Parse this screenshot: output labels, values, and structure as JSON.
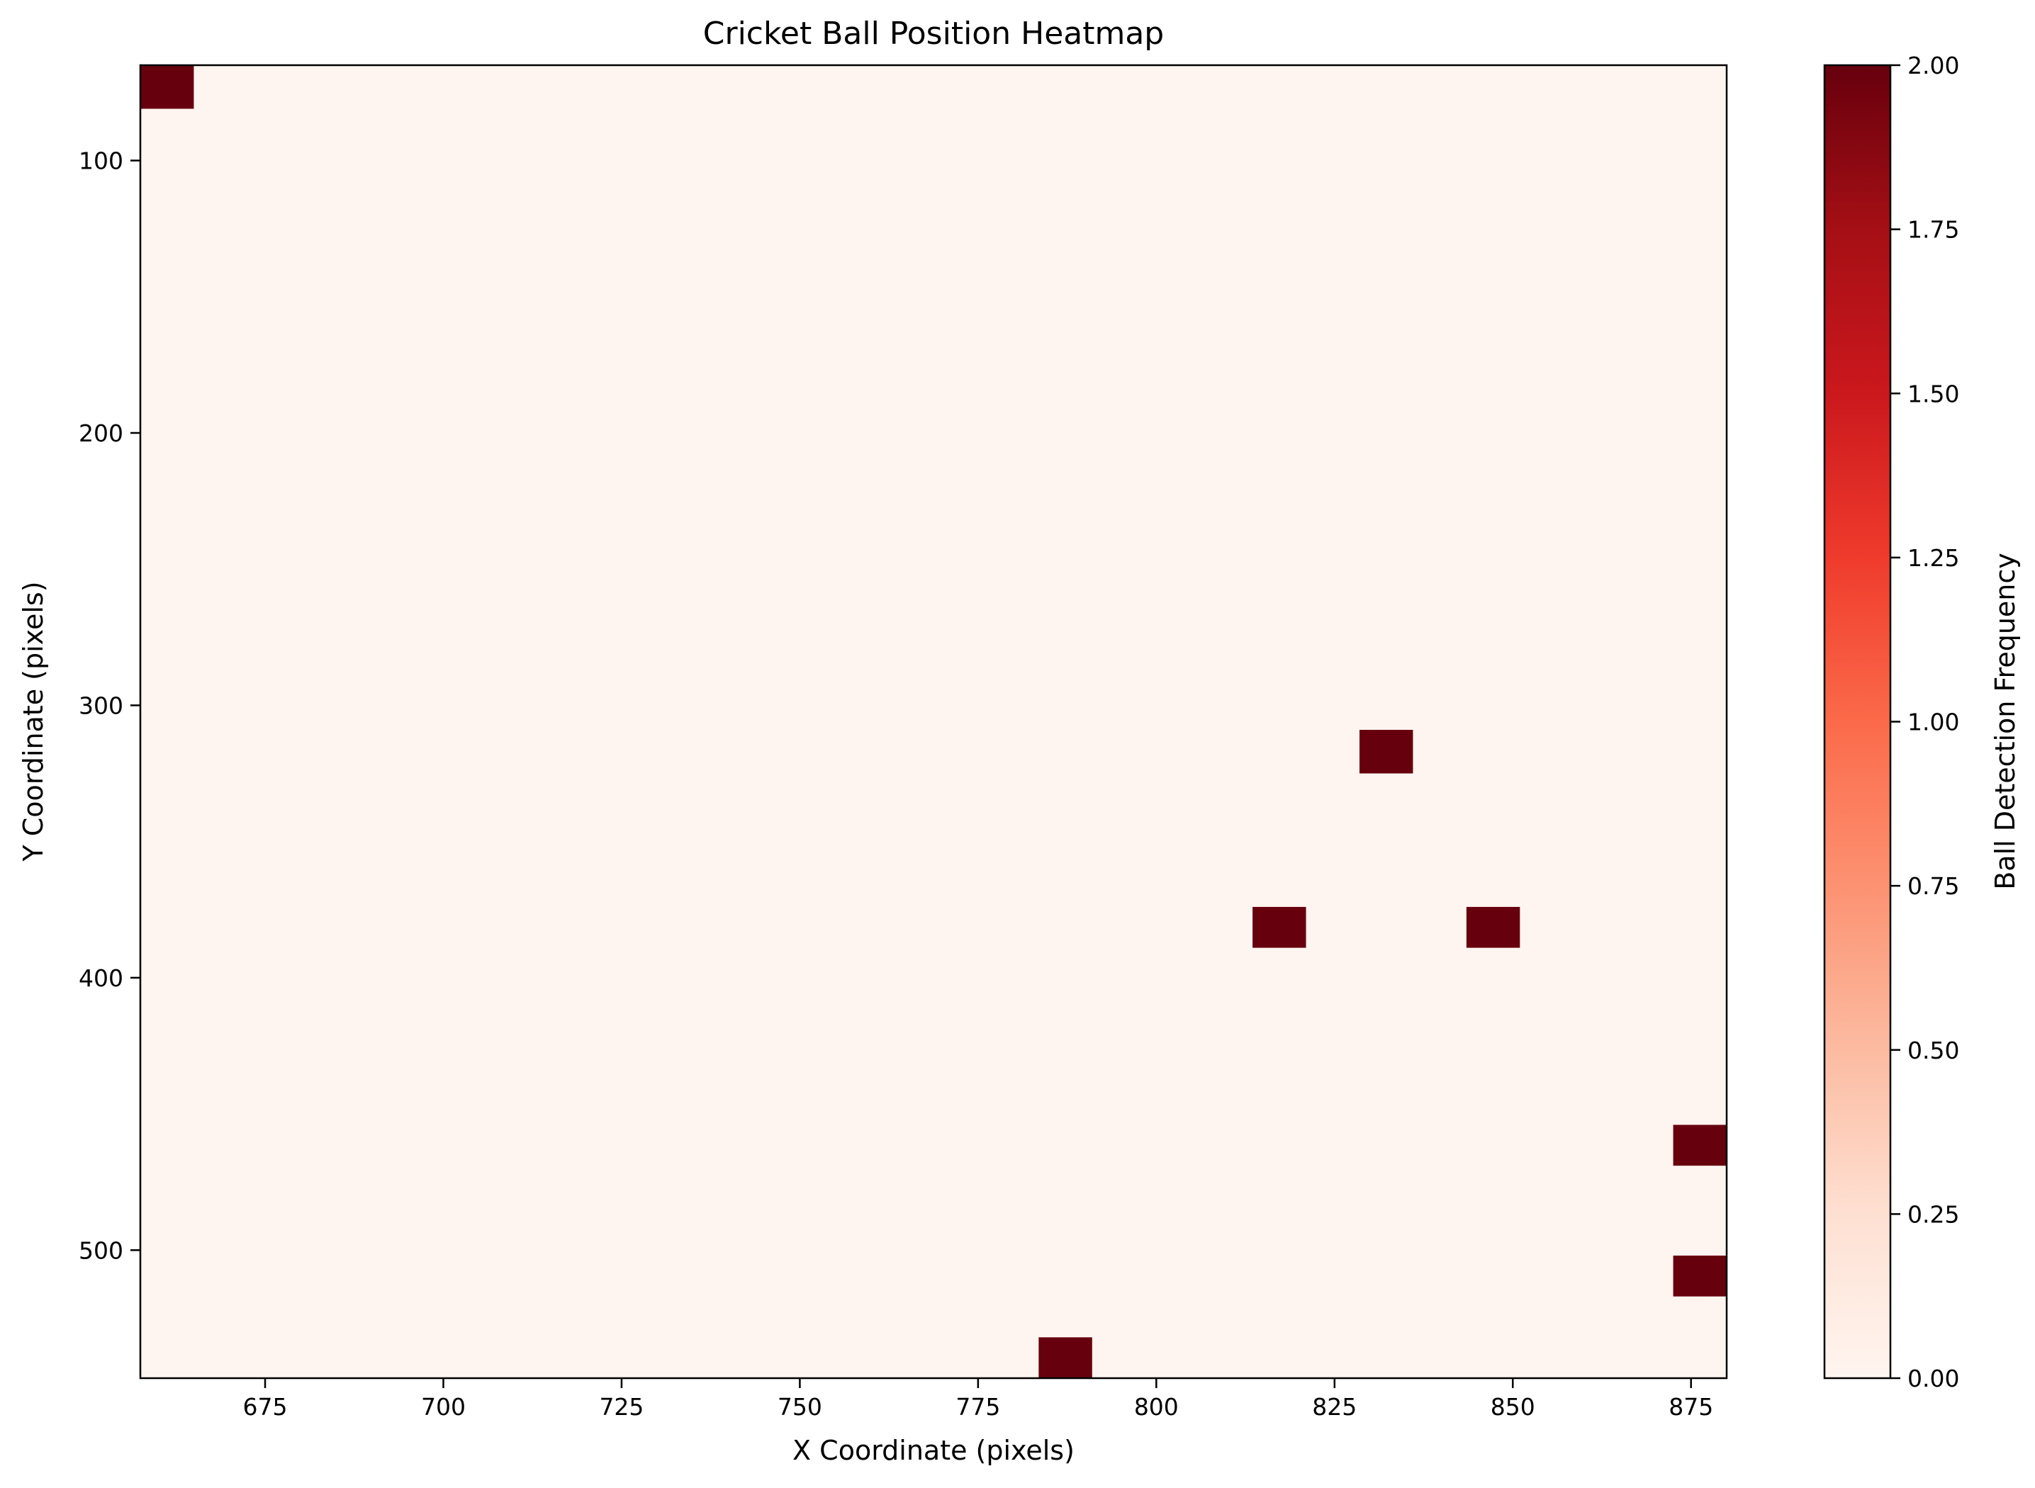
{
  "chart_data": {
    "type": "heatmap",
    "title": "Cricket Ball Position Heatmap",
    "xlabel": "X Coordinate (pixels)",
    "ylabel": "Y Coordinate (pixels)",
    "xlim": [
      657.5,
      880
    ],
    "ylim": [
      547,
      65
    ],
    "y_axis_inverted": true,
    "x_ticks": [
      {
        "value": 675,
        "label": "675"
      },
      {
        "value": 700,
        "label": "700"
      },
      {
        "value": 725,
        "label": "725"
      },
      {
        "value": 750,
        "label": "750"
      },
      {
        "value": 775,
        "label": "775"
      },
      {
        "value": 800,
        "label": "800"
      },
      {
        "value": 825,
        "label": "825"
      },
      {
        "value": 850,
        "label": "850"
      },
      {
        "value": 875,
        "label": "875"
      }
    ],
    "y_ticks": [
      {
        "value": 100,
        "label": "100"
      },
      {
        "value": 200,
        "label": "200"
      },
      {
        "value": 300,
        "label": "300"
      },
      {
        "value": 400,
        "label": "400"
      },
      {
        "value": 500,
        "label": "500"
      }
    ],
    "background_value": 0,
    "cells": [
      {
        "x0": 657.5,
        "x1": 665.0,
        "y0": 65,
        "y1": 81,
        "value": 2
      },
      {
        "x0": 828.5,
        "x1": 836.0,
        "y0": 309,
        "y1": 325,
        "value": 2
      },
      {
        "x0": 813.5,
        "x1": 821.0,
        "y0": 374,
        "y1": 389,
        "value": 2
      },
      {
        "x0": 843.5,
        "x1": 851.0,
        "y0": 374,
        "y1": 389,
        "value": 2
      },
      {
        "x0": 872.5,
        "x1": 880.0,
        "y0": 454,
        "y1": 469,
        "value": 2
      },
      {
        "x0": 872.5,
        "x1": 880.0,
        "y0": 502,
        "y1": 517,
        "value": 2
      },
      {
        "x0": 783.5,
        "x1": 791.0,
        "y0": 532,
        "y1": 547,
        "value": 2
      }
    ],
    "colorbar": {
      "label": "Ball Detection Frequency",
      "min": 0,
      "max": 2,
      "colormap": "Reds",
      "ticks": [
        {
          "value": 0,
          "label": "0.00"
        },
        {
          "value": 0.25,
          "label": "0.25"
        },
        {
          "value": 0.5,
          "label": "0.50"
        },
        {
          "value": 0.75,
          "label": "0.75"
        },
        {
          "value": 1.0,
          "label": "1.00"
        },
        {
          "value": 1.25,
          "label": "1.25"
        },
        {
          "value": 1.5,
          "label": "1.50"
        },
        {
          "value": 1.75,
          "label": "1.75"
        },
        {
          "value": 2.0,
          "label": "2.00"
        }
      ]
    },
    "colors": {
      "low": "#fff5f0",
      "high": "#67000d"
    },
    "grid": false,
    "legend": "none"
  }
}
